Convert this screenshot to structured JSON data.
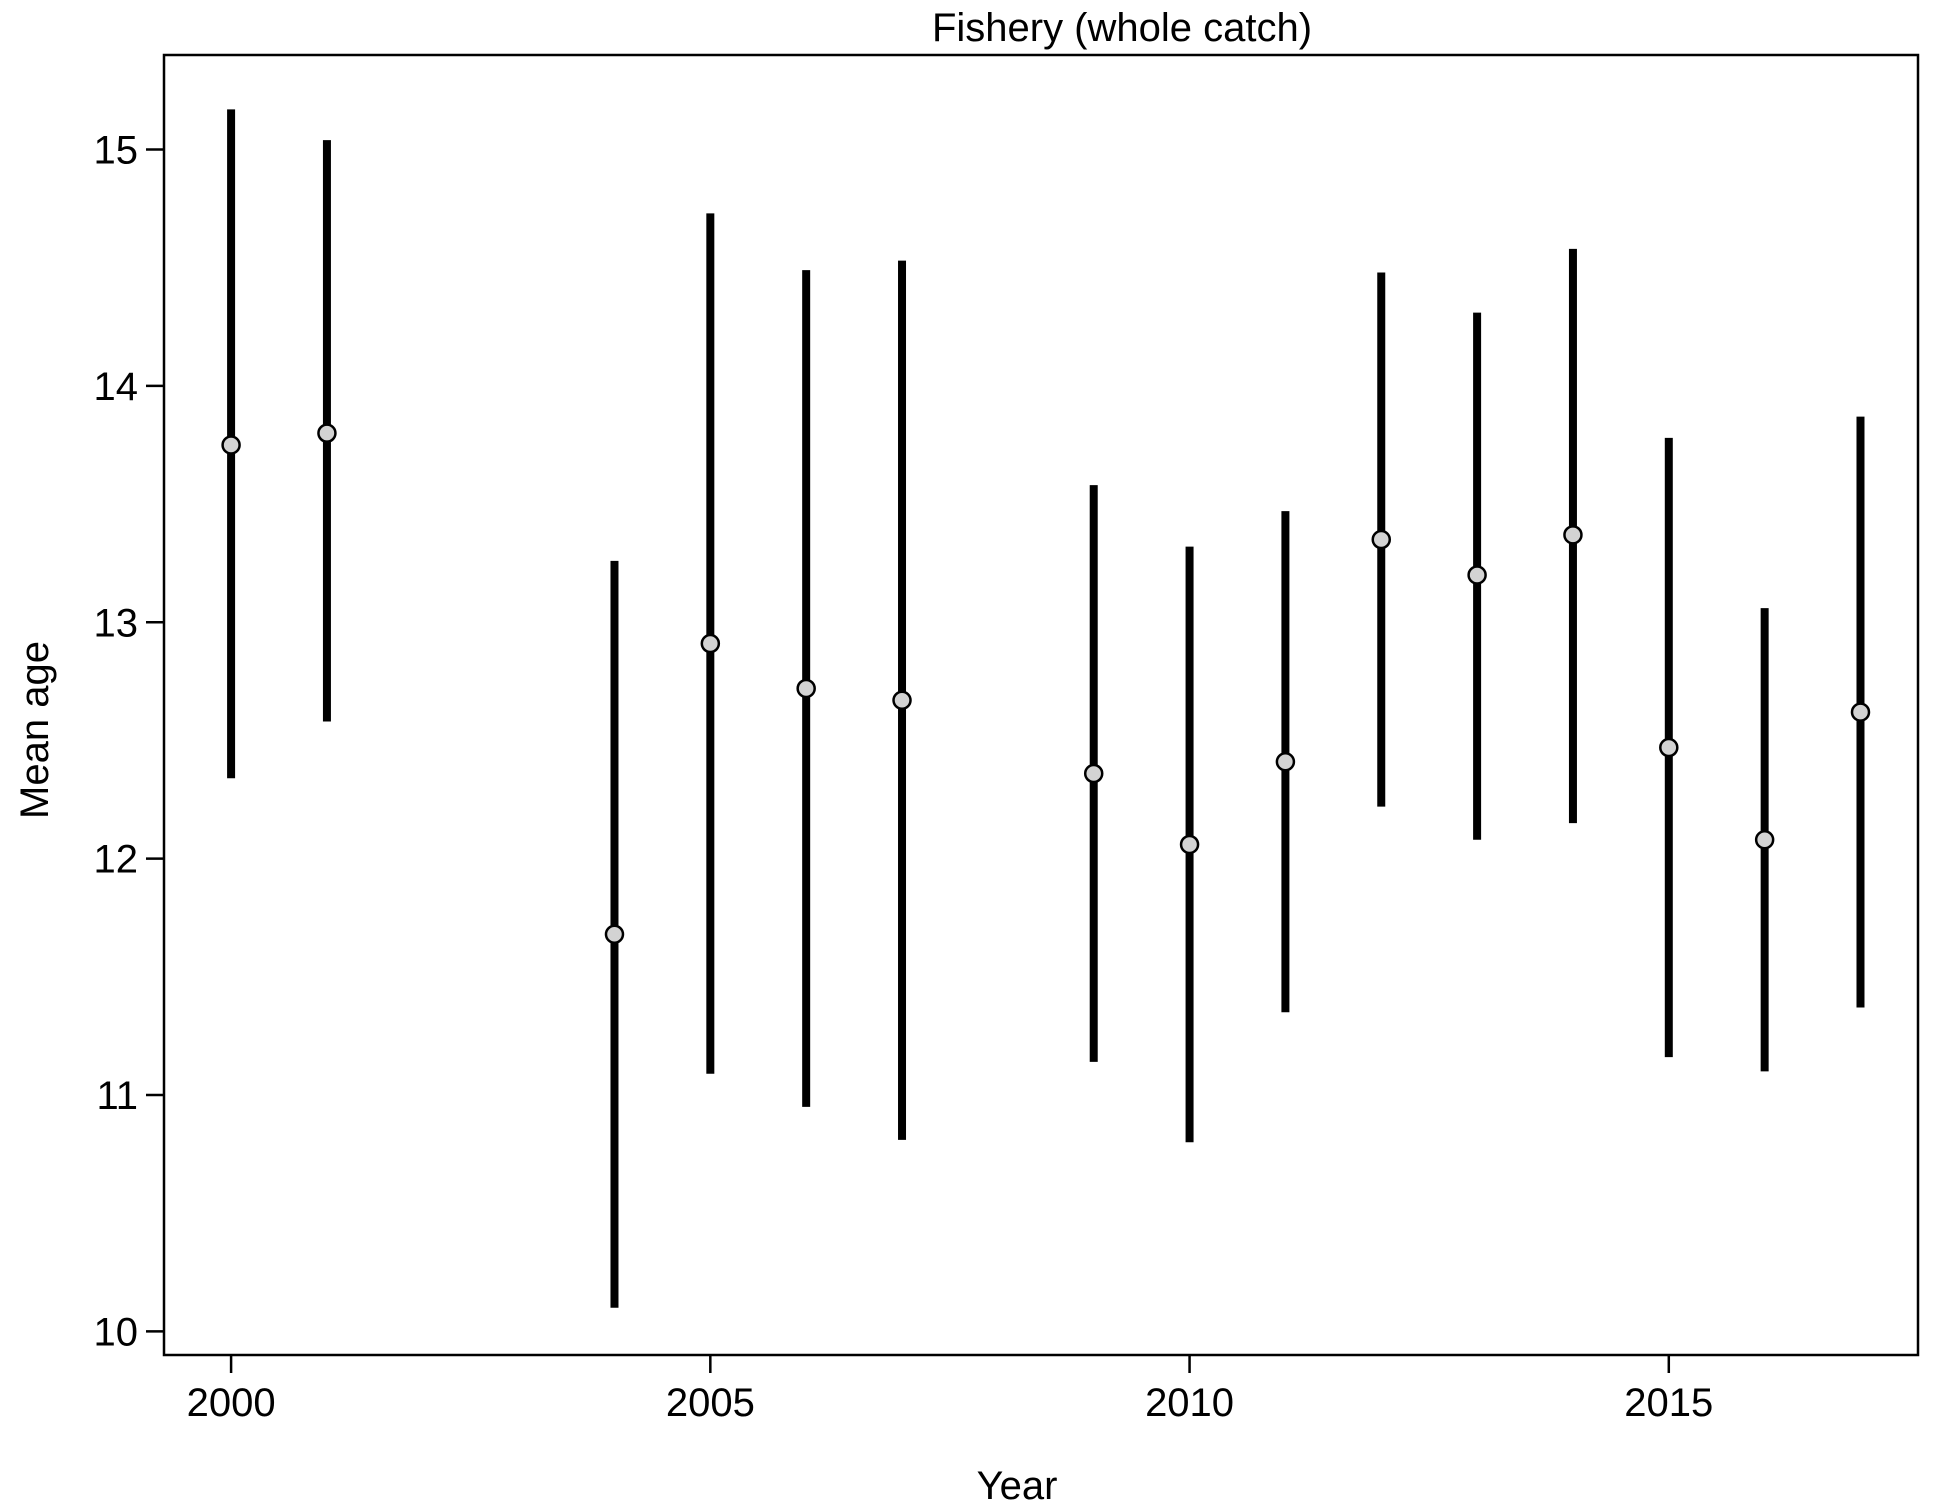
{
  "chart_data": {
    "type": "scatter",
    "title": "Fishery (whole catch)",
    "xlabel": "Year",
    "ylabel": "Mean age",
    "xlim": [
      1999.3,
      2017.6
    ],
    "ylim": [
      9.9,
      15.4
    ],
    "x_ticks": [
      2000,
      2005,
      2010,
      2015
    ],
    "y_ticks": [
      10,
      11,
      12,
      13,
      14,
      15
    ],
    "grid": false,
    "error_bars": true,
    "colors": {
      "bar": "#000000",
      "point_fill": "#d3d3d3",
      "point_stroke": "#000000"
    },
    "points": [
      {
        "x": 2000,
        "y": 13.75,
        "lower": 12.34,
        "upper": 15.17
      },
      {
        "x": 2001,
        "y": 13.8,
        "lower": 12.58,
        "upper": 15.04
      },
      {
        "x": 2004,
        "y": 11.68,
        "lower": 10.1,
        "upper": 13.26
      },
      {
        "x": 2005,
        "y": 12.91,
        "lower": 11.09,
        "upper": 14.73
      },
      {
        "x": 2006,
        "y": 12.72,
        "lower": 10.95,
        "upper": 14.49
      },
      {
        "x": 2007,
        "y": 12.67,
        "lower": 10.81,
        "upper": 14.53
      },
      {
        "x": 2009,
        "y": 12.36,
        "lower": 11.14,
        "upper": 13.58
      },
      {
        "x": 2010,
        "y": 12.06,
        "lower": 10.8,
        "upper": 13.32
      },
      {
        "x": 2011,
        "y": 12.41,
        "lower": 11.35,
        "upper": 13.47
      },
      {
        "x": 2012,
        "y": 13.35,
        "lower": 12.22,
        "upper": 14.48
      },
      {
        "x": 2013,
        "y": 13.2,
        "lower": 12.08,
        "upper": 14.31
      },
      {
        "x": 2014,
        "y": 13.37,
        "lower": 12.15,
        "upper": 14.58
      },
      {
        "x": 2015,
        "y": 12.47,
        "lower": 11.16,
        "upper": 13.78
      },
      {
        "x": 2016,
        "y": 12.08,
        "lower": 11.1,
        "upper": 13.06
      },
      {
        "x": 2017,
        "y": 12.62,
        "lower": 11.37,
        "upper": 13.87
      }
    ]
  }
}
